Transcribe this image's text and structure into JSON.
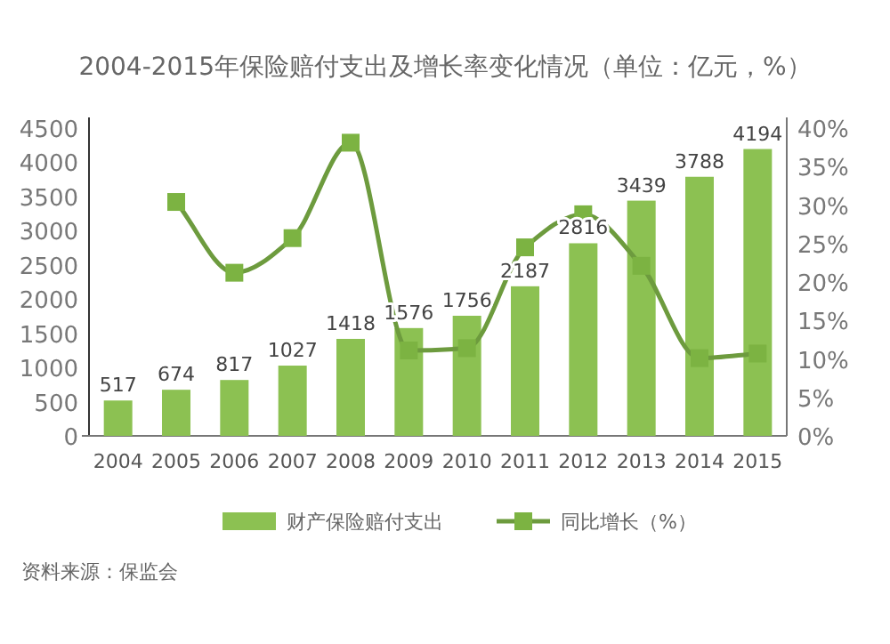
{
  "chart_data": {
    "type": "bar",
    "title": "2004-2015年保险赔付支出及增长率变化情况（单位：亿元，%）",
    "categories": [
      "2004",
      "2005",
      "2006",
      "2007",
      "2008",
      "2009",
      "2010",
      "2011",
      "2012",
      "2013",
      "2014",
      "2015"
    ],
    "series": [
      {
        "name": "财产保险赔付支出",
        "color": "#8cc152",
        "values": [
          517,
          674,
          817,
          1027,
          1418,
          1576,
          1756,
          2187,
          2816,
          3439,
          3788,
          4194
        ],
        "value_labels": [
          "517",
          "674",
          "817",
          "1027",
          "1418",
          "1576",
          "1756",
          "2187",
          "2816",
          "3439",
          "3788",
          "4194"
        ]
      },
      {
        "name": "同比增长（%）",
        "type": "line",
        "axis": "y2",
        "color": "#6d9b3e",
        "marker": "square",
        "values": [
          null,
          30.4,
          21.2,
          25.7,
          38.1,
          11.1,
          11.4,
          24.5,
          28.8,
          22.1,
          10.1,
          10.7
        ]
      }
    ],
    "ylim": [
      0,
      4500
    ],
    "yticks": [
      0,
      500,
      1000,
      1500,
      2000,
      2500,
      3000,
      3500,
      4000,
      4500
    ],
    "y2lim": [
      0,
      40
    ],
    "y2ticks": [
      {
        "value": 0,
        "label": "0%"
      },
      {
        "value": 5,
        "label": "5%"
      },
      {
        "value": 10,
        "label": "10%"
      },
      {
        "value": 15,
        "label": "15%"
      },
      {
        "value": 20,
        "label": "20%"
      },
      {
        "value": 25,
        "label": "25%"
      },
      {
        "value": 30,
        "label": "30%"
      },
      {
        "value": 35,
        "label": "35%"
      },
      {
        "value": 40,
        "label": "40%"
      }
    ],
    "grid": false,
    "legend": "bottom",
    "annotations": [
      "资料来源：保监会"
    ]
  }
}
